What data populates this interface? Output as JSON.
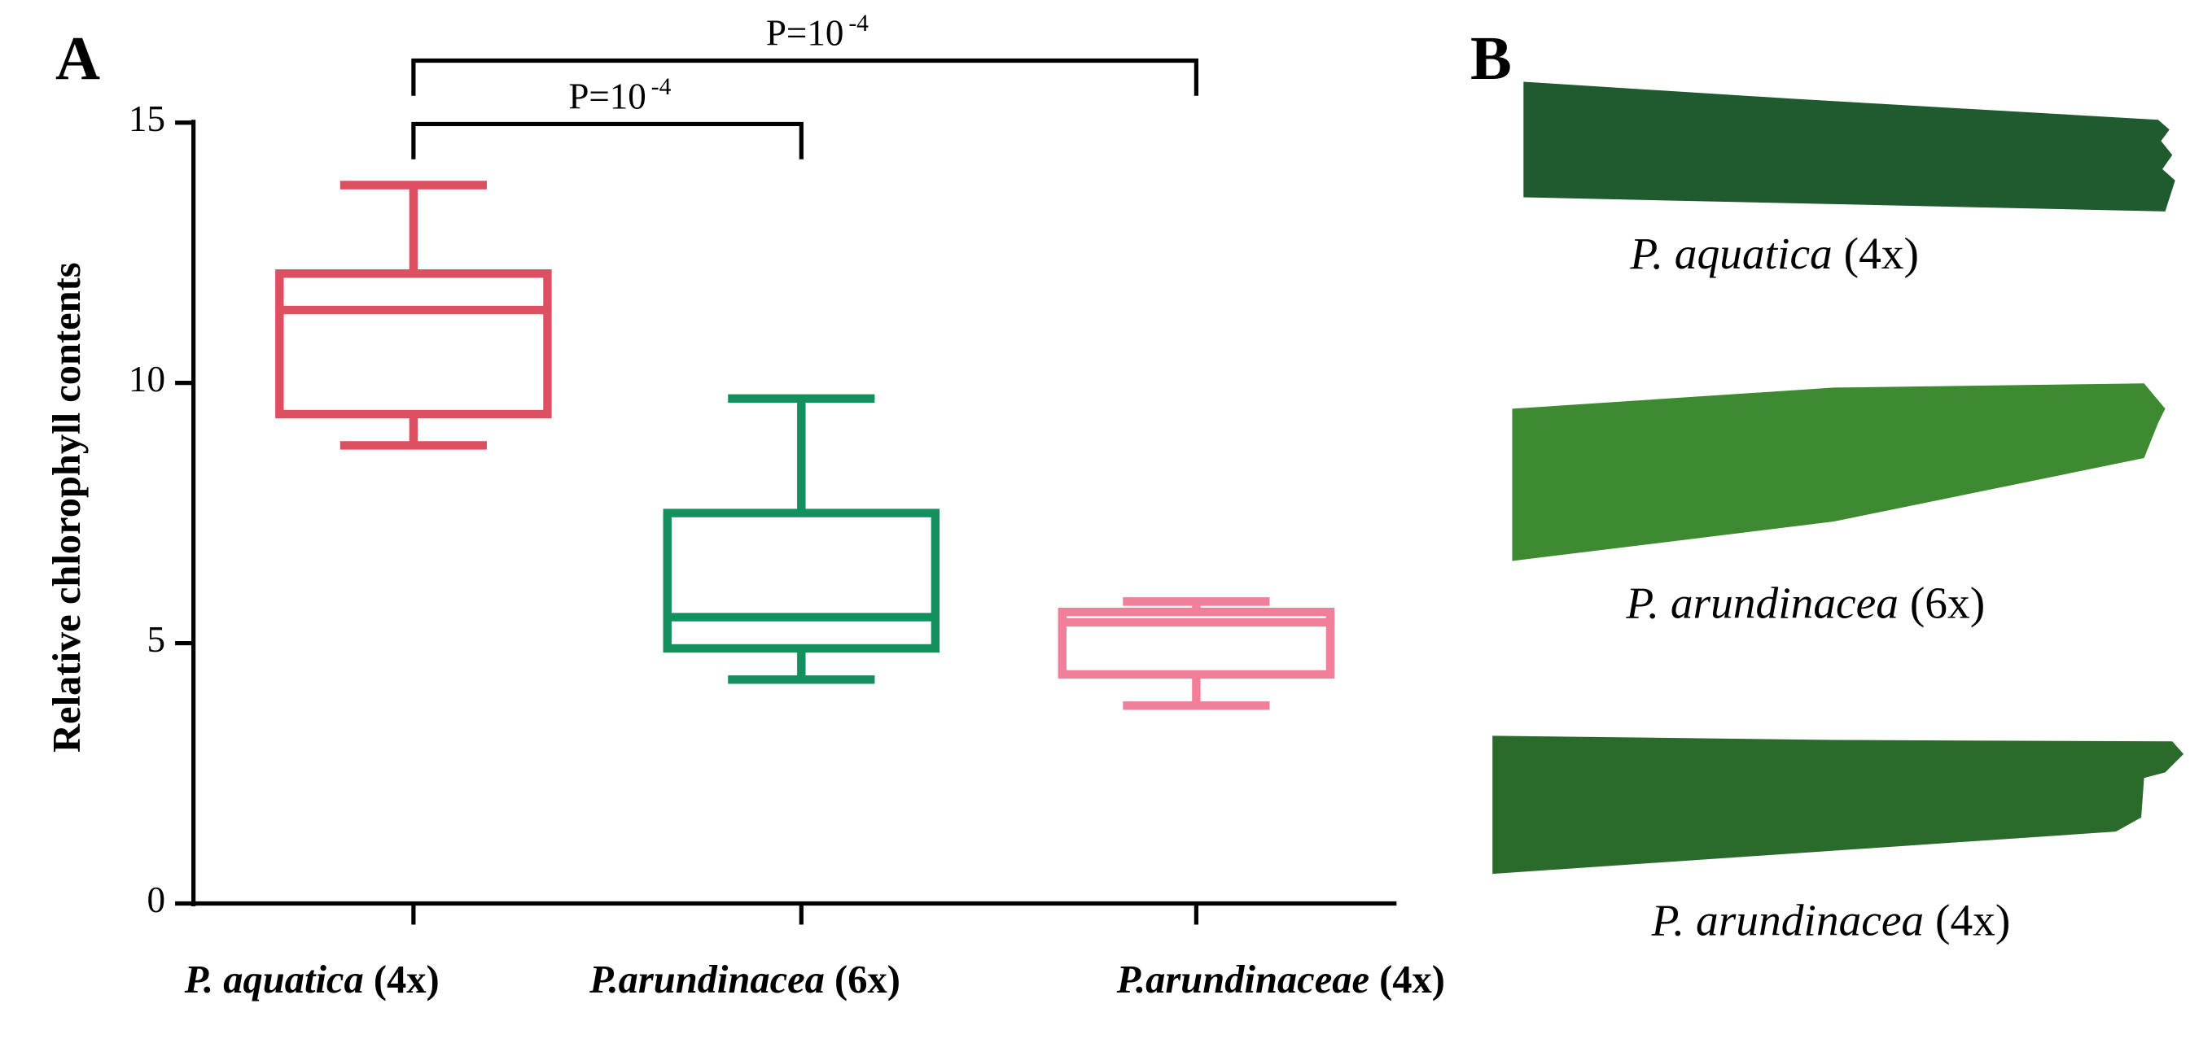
{
  "chart_data": {
    "type": "box",
    "panel": "A",
    "ylabel": "Relative chlorophyll contents",
    "categories": [
      "P. aquatica (4x)",
      "P.arundinacea (6x)",
      "P.arundinaceae (4x)"
    ],
    "boxes": [
      {
        "min": 8.8,
        "q1": 9.4,
        "median": 11.4,
        "q3": 12.1,
        "max": 13.8,
        "color": "#df4f62"
      },
      {
        "min": 4.3,
        "q1": 4.9,
        "median": 5.5,
        "q3": 7.5,
        "max": 9.7,
        "color": "#12905e"
      },
      {
        "min": 3.8,
        "q1": 4.4,
        "median": 5.4,
        "q3": 5.6,
        "max": 5.8,
        "color": "#f27f9a"
      }
    ],
    "ylim": [
      0,
      15
    ],
    "yticks": [
      0,
      5,
      10,
      15
    ],
    "annotations": [
      {
        "text": "P=10",
        "sup": "-4",
        "from": 0,
        "to": 1
      },
      {
        "text": "P=10",
        "sup": "-4",
        "from": 0,
        "to": 2
      }
    ]
  },
  "panel_b": {
    "panel": "B",
    "labels": [
      "P. aquatica (4x)",
      "P. arundinacea (6x)",
      "P. arundinacea (4x)"
    ]
  }
}
